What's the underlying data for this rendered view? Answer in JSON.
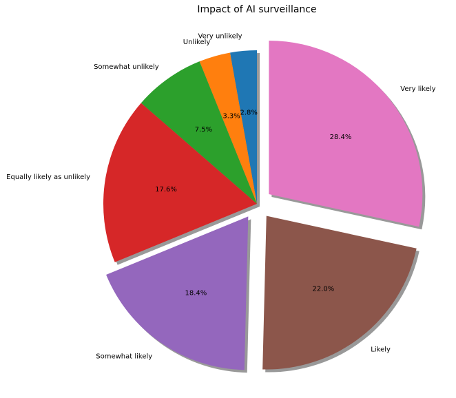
{
  "chart_data": {
    "type": "pie",
    "title": "Impact of AI surveillance",
    "categories": [
      "Very unlikely",
      "Unlikely",
      "Somewhat unlikely",
      "Equally likely as unlikely",
      "Somewhat likely",
      "Likely",
      "Very likely"
    ],
    "values": [
      2.8,
      3.3,
      7.5,
      17.6,
      18.4,
      22.0,
      28.4
    ],
    "percent_labels": [
      "2.8%",
      "3.3%",
      "7.5%",
      "17.6%",
      "18.4%",
      "22.0%",
      "28.4%"
    ],
    "colors": [
      "#1f77b4",
      "#ff7f0e",
      "#2ca02c",
      "#d62728",
      "#9467bd",
      "#8c564b",
      "#e377c2"
    ],
    "exploded": [
      false,
      false,
      false,
      false,
      true,
      true,
      true
    ],
    "shadow": true,
    "start_angle_deg": 90,
    "direction": "counterclockwise"
  }
}
